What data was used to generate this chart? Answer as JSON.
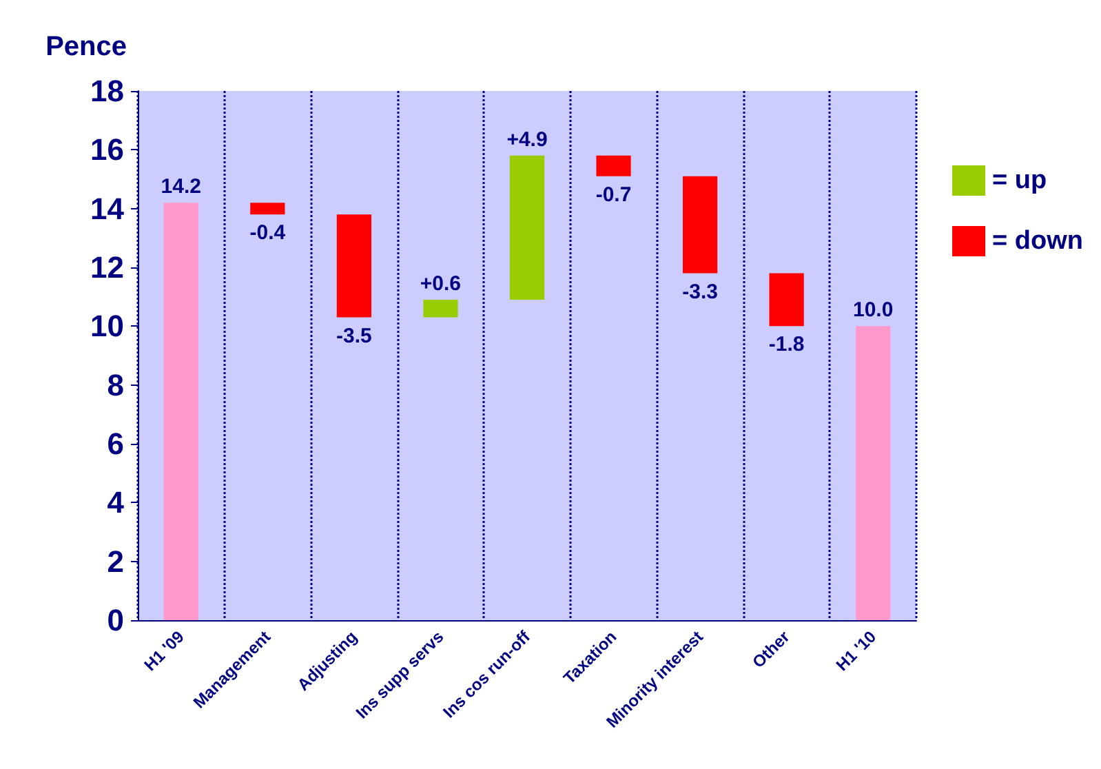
{
  "chart_data": {
    "type": "bar",
    "ylabel": "Pence",
    "categories": [
      "H1 '09",
      "Management",
      "Adjusting",
      "Ins supp servs",
      "Ins cos run-off",
      "Taxation",
      "Minority interest",
      "Other",
      "H1 '10"
    ],
    "series": [
      {
        "color": "#ff99cc",
        "values": [
          14.2,
          null,
          null,
          null,
          null,
          null,
          null,
          null,
          10.0
        ],
        "base": [
          0,
          null,
          null,
          null,
          null,
          null,
          null,
          null,
          0
        ],
        "value_labels": [
          "14.2",
          null,
          null,
          null,
          null,
          null,
          null,
          null,
          "10.0"
        ]
      },
      {
        "name": "= up",
        "color": "#99cc00",
        "values": [
          null,
          null,
          null,
          0.6,
          4.9,
          null,
          null,
          null,
          null
        ],
        "base": [
          null,
          null,
          null,
          10.3,
          10.9,
          null,
          null,
          null,
          null
        ],
        "value_labels": [
          null,
          null,
          null,
          "+0.6",
          "+4.9",
          null,
          null,
          null,
          null
        ]
      },
      {
        "name": "= down",
        "color": "#ff0000",
        "values": [
          null,
          -0.4,
          -3.5,
          null,
          null,
          -0.7,
          -3.3,
          -1.8,
          null
        ],
        "base": [
          null,
          14.2,
          13.8,
          null,
          null,
          15.8,
          15.1,
          11.8,
          null
        ],
        "value_labels": [
          null,
          "-0.4",
          "-3.5",
          null,
          null,
          "-0.7",
          "-3.3",
          "-1.8",
          null
        ]
      }
    ],
    "ylim": [
      0,
      18
    ],
    "yticks": [
      0,
      2,
      4,
      6,
      8,
      10,
      12,
      14,
      16,
      18
    ],
    "grid": "x",
    "legend": "right"
  }
}
